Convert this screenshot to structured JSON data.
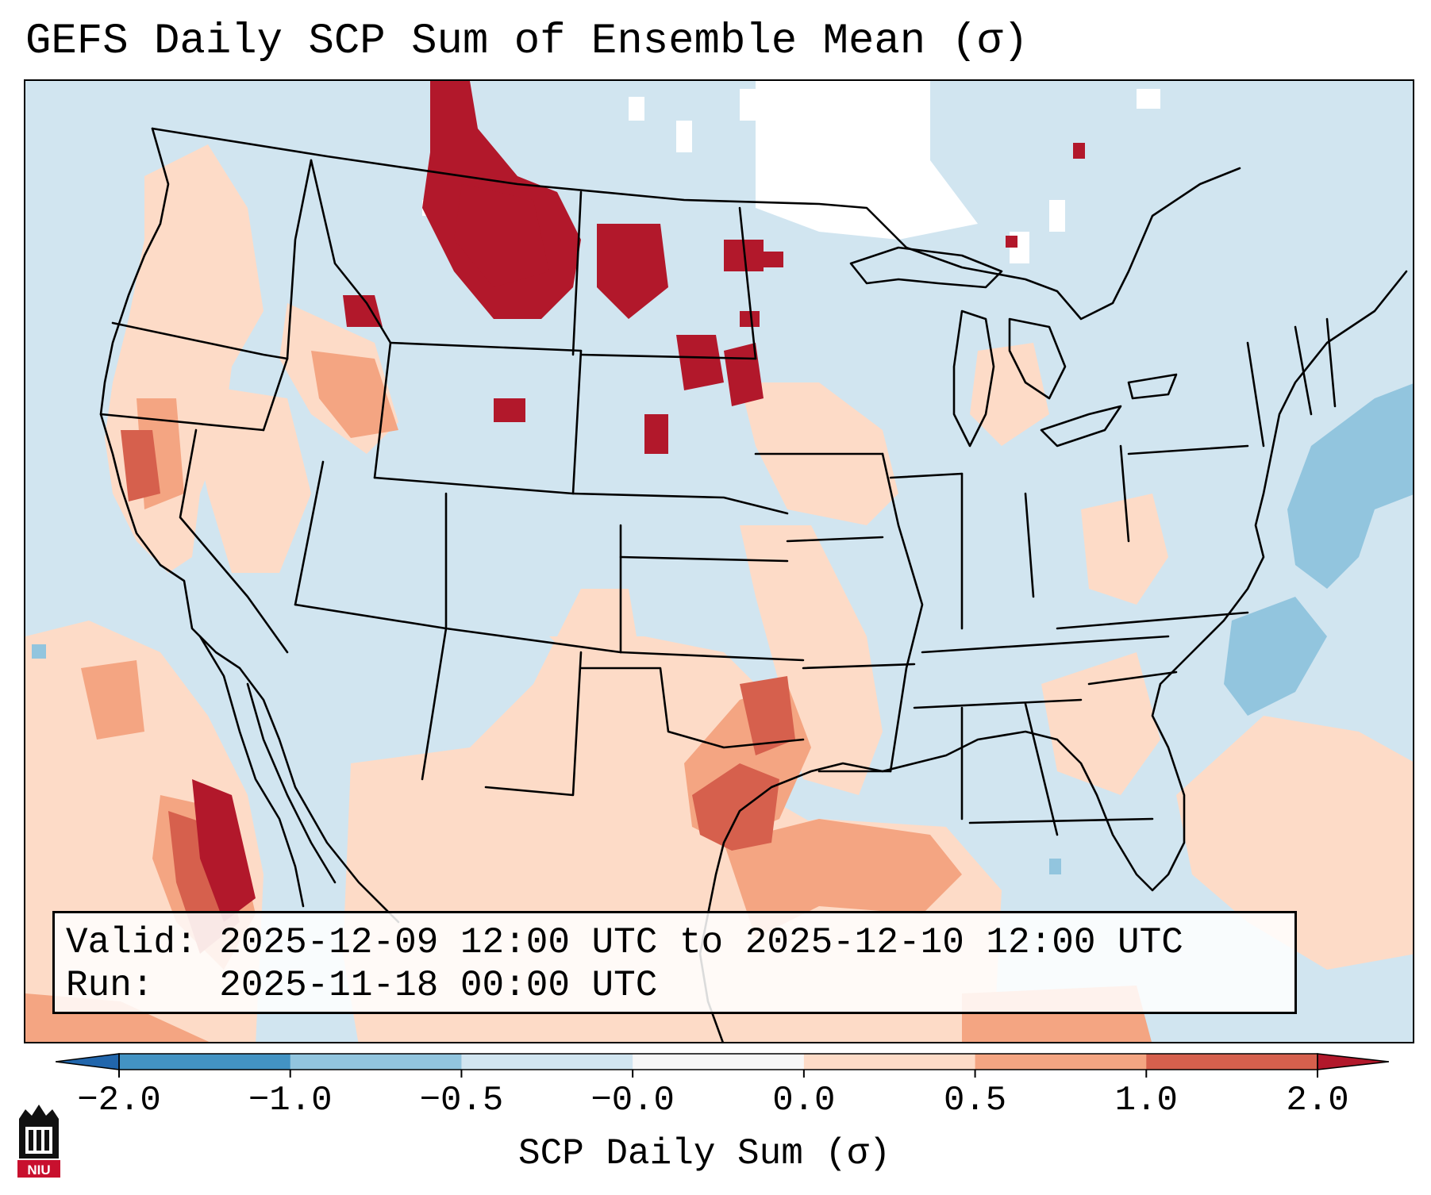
{
  "title": "GEFS Daily SCP Sum of Ensemble Mean (σ)",
  "info": {
    "valid_label": "Valid:",
    "valid_value": "2025-12-09 12:00 UTC to 2025-12-10 12:00 UTC",
    "run_label": "Run:",
    "run_value": "2025-11-18 00:00 UTC"
  },
  "colorbar": {
    "label": "SCP Daily Sum (σ)",
    "ticks": [
      "−2.0",
      "−1.0",
      "−0.5",
      "−0.0",
      "0.0",
      "0.5",
      "1.0",
      "2.0"
    ],
    "bins": [
      {
        "from": -2.0,
        "to": -1.0,
        "color": "#4393c3"
      },
      {
        "from": -1.0,
        "to": -0.5,
        "color": "#92c5de"
      },
      {
        "from": -0.5,
        "to": -0.0,
        "color": "#d1e5f0"
      },
      {
        "from": -0.0,
        "to": 0.0,
        "color": "#f7f7f7"
      },
      {
        "from": 0.0,
        "to": 0.5,
        "color": "#fddbc7"
      },
      {
        "from": 0.5,
        "to": 1.0,
        "color": "#f4a582"
      },
      {
        "from": 1.0,
        "to": 2.0,
        "color": "#d6604d"
      }
    ],
    "under_color": "#2166ac",
    "over_color": "#b2182b"
  },
  "colors": {
    "neg_light": "#d1e5f0",
    "neg_mid": "#92c5de",
    "zero": "#ffffff",
    "pos_light": "#fddbc7",
    "pos_mid": "#f4a582",
    "pos_high": "#d6604d",
    "pos_max": "#b2182b"
  },
  "logo": {
    "text": "NIU",
    "icon": "niu-logo-icon"
  }
}
